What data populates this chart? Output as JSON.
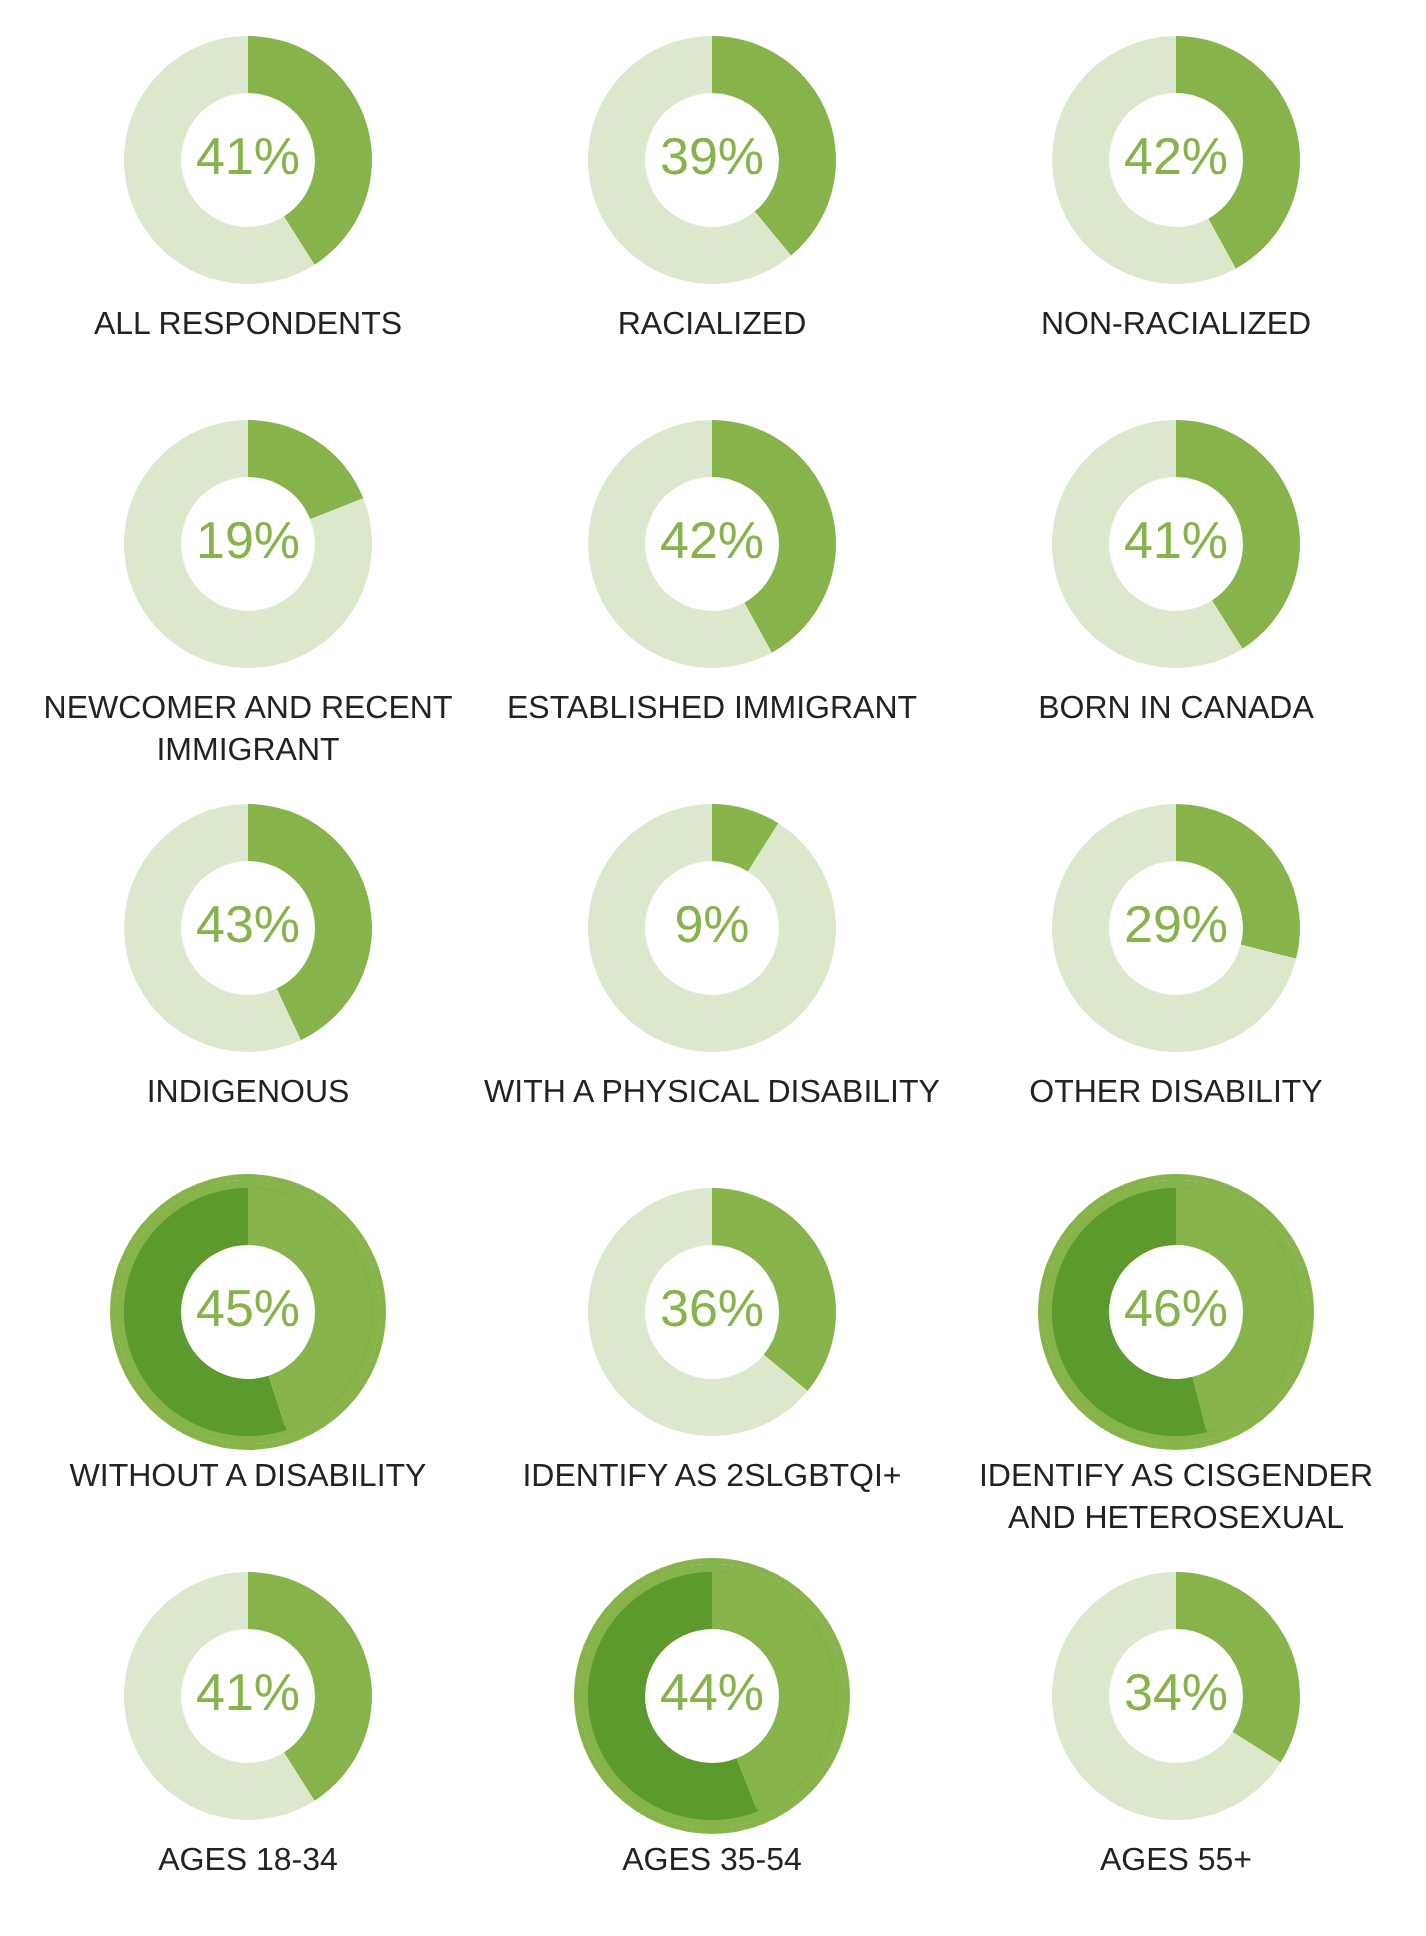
{
  "chart_data": [
    {
      "type": "donut",
      "title": "ALL RESPONDENTS",
      "categories": [
        null,
        null
      ],
      "values": [
        41,
        59
      ],
      "colors": [
        "#86b34a",
        "#dce8cb"
      ],
      "value_labels": [
        "41%",
        null
      ]
    },
    {
      "type": "donut",
      "title": "RACIALIZED",
      "categories": [
        null,
        null
      ],
      "values": [
        39,
        61
      ],
      "colors": [
        "#86b34a",
        "#dce8cb"
      ],
      "value_labels": [
        "39%",
        null
      ]
    },
    {
      "type": "donut",
      "title": "NON-RACIALIZED",
      "categories": [
        null,
        null
      ],
      "values": [
        42,
        58
      ],
      "colors": [
        "#86b34a",
        "#dce8cb"
      ],
      "value_labels": [
        "42%",
        null
      ]
    },
    {
      "type": "donut",
      "title": "NEWCOMER AND RECENT IMMIGRANT",
      "categories": [
        null,
        null
      ],
      "values": [
        19,
        81
      ],
      "colors": [
        "#86b34a",
        "#dce8cb"
      ],
      "value_labels": [
        "19%",
        null
      ]
    },
    {
      "type": "donut",
      "title": "ESTABLISHED IMMIGRANT",
      "categories": [
        null,
        null
      ],
      "values": [
        42,
        58
      ],
      "colors": [
        "#86b34a",
        "#dce8cb"
      ],
      "value_labels": [
        "42%",
        null
      ]
    },
    {
      "type": "donut",
      "title": "BORN IN CANADA",
      "categories": [
        null,
        null
      ],
      "values": [
        41,
        59
      ],
      "colors": [
        "#86b34a",
        "#dce8cb"
      ],
      "value_labels": [
        "41%",
        null
      ]
    },
    {
      "type": "donut",
      "title": "INDIGENOUS",
      "categories": [
        null,
        null
      ],
      "values": [
        43,
        57
      ],
      "colors": [
        "#86b34a",
        "#dce8cb"
      ],
      "value_labels": [
        "43%",
        null
      ]
    },
    {
      "type": "donut",
      "title": "WITH A PHYSICAL DISABILITY",
      "categories": [
        null,
        null
      ],
      "values": [
        9,
        91
      ],
      "colors": [
        "#86b34a",
        "#dce8cb"
      ],
      "value_labels": [
        "9%",
        null
      ]
    },
    {
      "type": "donut",
      "title": "OTHER DISABILITY",
      "categories": [
        null,
        null
      ],
      "values": [
        29,
        71
      ],
      "colors": [
        "#86b34a",
        "#dce8cb"
      ],
      "value_labels": [
        "29%",
        null
      ]
    },
    {
      "type": "donut",
      "title": "WITHOUT A DISABILITY",
      "categories": [
        null,
        null
      ],
      "values": [
        45,
        55
      ],
      "colors": [
        "#86b34a",
        "#5c9a2e"
      ],
      "value_labels": [
        "45%",
        null
      ]
    },
    {
      "type": "donut",
      "title": "IDENTIFY AS 2SLGBTQI+",
      "categories": [
        null,
        null
      ],
      "values": [
        36,
        64
      ],
      "colors": [
        "#86b34a",
        "#dce8cb"
      ],
      "value_labels": [
        "36%",
        null
      ]
    },
    {
      "type": "donut",
      "title": "IDENTIFY AS CISGENDER AND HETEROSEXUAL",
      "categories": [
        null,
        null
      ],
      "values": [
        46,
        54
      ],
      "colors": [
        "#86b34a",
        "#5c9a2e"
      ],
      "value_labels": [
        "46%",
        null
      ]
    },
    {
      "type": "donut",
      "title": "AGES 18-34",
      "categories": [
        null,
        null
      ],
      "values": [
        41,
        59
      ],
      "colors": [
        "#86b34a",
        "#dce8cb"
      ],
      "value_labels": [
        "41%",
        null
      ]
    },
    {
      "type": "donut",
      "title": "AGES 35-54",
      "categories": [
        null,
        null
      ],
      "values": [
        44,
        56
      ],
      "colors": [
        "#86b34a",
        "#5c9a2e"
      ],
      "value_labels": [
        "44%",
        null
      ]
    },
    {
      "type": "donut",
      "title": "AGES 55+",
      "categories": [
        null,
        null
      ],
      "values": [
        34,
        66
      ],
      "colors": [
        "#86b34a",
        "#dce8cb"
      ],
      "value_labels": [
        "34%",
        null
      ]
    }
  ]
}
